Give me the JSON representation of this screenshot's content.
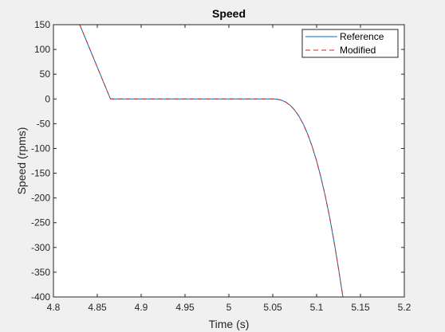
{
  "figure": {
    "background": "#f0f0f0"
  },
  "chart_data": {
    "type": "line",
    "title": "Speed",
    "xlabel": "Time (s)",
    "ylabel": "Speed (rpms)",
    "xlim": [
      4.8,
      5.2
    ],
    "ylim": [
      -400,
      150
    ],
    "xticks": [
      4.8,
      4.85,
      4.9,
      4.95,
      5,
      5.05,
      5.1,
      5.15,
      5.2
    ],
    "xtick_labels": [
      "4.8",
      "4.85",
      "4.9",
      "4.95",
      "5",
      "5.05",
      "5.1",
      "5.15",
      "5.2"
    ],
    "yticks": [
      150,
      100,
      50,
      0,
      -50,
      -100,
      -150,
      -200,
      -250,
      -300,
      -350,
      -400
    ],
    "ytick_labels": [
      "150",
      "100",
      "50",
      "0",
      "-50",
      "-100",
      "-150",
      "-200",
      "-250",
      "-300",
      "-350",
      "-400"
    ],
    "grid": false,
    "legend_position": "top-right",
    "series": [
      {
        "name": "Reference",
        "color": "#0072bd",
        "style": "solid",
        "x": [
          4.83,
          4.8475,
          4.865,
          4.9,
          4.95,
          5.0,
          5.05,
          5.055,
          5.06,
          5.065,
          5.07,
          5.075,
          5.08,
          5.085,
          5.09,
          5.095,
          5.1,
          5.105,
          5.11,
          5.115,
          5.12,
          5.125,
          5.13,
          5.135,
          5.14,
          5.1424
        ],
        "y": [
          150,
          75,
          0,
          0,
          0,
          0,
          0,
          -0.5,
          -2.5,
          -6.6,
          -13.1,
          -22.5,
          -35.3,
          -51.6,
          -71.9,
          -96.4,
          -125.3,
          -158.8,
          -197.1,
          -240.4,
          -289,
          -343,
          -400,
          -400,
          -400,
          -400
        ]
      },
      {
        "name": "Modified",
        "color": "#d62728",
        "style": "dashed",
        "x": [
          4.83,
          4.8475,
          4.865,
          4.9,
          4.95,
          5.0,
          5.05,
          5.055,
          5.06,
          5.065,
          5.07,
          5.075,
          5.08,
          5.085,
          5.09,
          5.095,
          5.1,
          5.105,
          5.11,
          5.115,
          5.12,
          5.125,
          5.13,
          5.135,
          5.14,
          5.1424
        ],
        "y": [
          150,
          75,
          0,
          0,
          0,
          0,
          0,
          -0.5,
          -2.5,
          -6.6,
          -13.1,
          -22.5,
          -35.3,
          -51.6,
          -71.9,
          -96.4,
          -125.3,
          -158.8,
          -197.1,
          -240.4,
          -289,
          -343,
          -400,
          -400,
          -400,
          -400
        ]
      }
    ]
  }
}
